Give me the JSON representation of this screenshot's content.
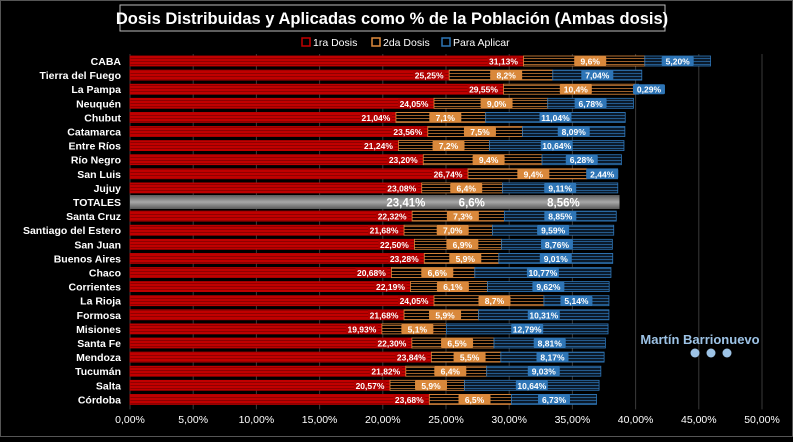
{
  "chart_data": {
    "type": "bar",
    "orientation": "horizontal",
    "stacked": true,
    "title": "Dosis Distribuidas y Aplicadas como % de la Población (Ambas dosis)",
    "xlim": [
      0,
      50
    ],
    "x_ticks": [
      "0,00%",
      "5,00%",
      "10,00%",
      "15,00%",
      "20,00%",
      "25,00%",
      "30,00%",
      "35,00%",
      "40,00%",
      "45,00%",
      "50,00%"
    ],
    "grid": true,
    "legend_position": "top",
    "colors": {
      "first": "#c00000",
      "second": "#e08a3c",
      "pending": "#2e75b6",
      "highlight": "#808080"
    },
    "categories": [
      "CABA",
      "Tierra del Fuego",
      "La Pampa",
      "Neuquén",
      "Chubut",
      "Catamarca",
      "Entre Ríos",
      "Río Negro",
      "San Luis",
      "Jujuy",
      "TOTALES",
      "Santa Cruz",
      "Santiago del Estero",
      "San Juan",
      "Buenos Aires",
      "Chaco",
      "Corrientes",
      "La Rioja",
      "Formosa",
      "Misiones",
      "Santa Fe",
      "Mendoza",
      "Tucumán",
      "Salta",
      "Córdoba"
    ],
    "highlight_category": "TOTALES",
    "series": [
      {
        "name": "1ra Dosis",
        "values": [
          31.13,
          25.25,
          29.55,
          24.05,
          21.04,
          23.56,
          21.24,
          23.2,
          26.74,
          23.08,
          23.41,
          22.32,
          21.68,
          22.5,
          23.28,
          20.68,
          22.19,
          24.05,
          21.68,
          19.93,
          22.3,
          23.84,
          21.82,
          20.57,
          23.68
        ],
        "labels": [
          "31,13%",
          "25,25%",
          "29,55%",
          "24,05%",
          "21,04%",
          "23,56%",
          "21,24%",
          "23,20%",
          "26,74%",
          "23,08%",
          "23,41%",
          "22,32%",
          "21,68%",
          "22,50%",
          "23,28%",
          "20,68%",
          "22,19%",
          "24,05%",
          "21,68%",
          "19,93%",
          "22,30%",
          "23,84%",
          "21,82%",
          "20,57%",
          "23,68%"
        ]
      },
      {
        "name": "2da Dosis",
        "values": [
          9.6,
          8.2,
          10.4,
          9.0,
          7.1,
          7.5,
          7.2,
          9.4,
          9.4,
          6.4,
          6.6,
          7.3,
          7.0,
          6.9,
          5.9,
          6.6,
          6.1,
          8.7,
          5.9,
          5.1,
          6.5,
          5.5,
          6.4,
          5.9,
          6.5
        ],
        "labels": [
          "9,6%",
          "8,2%",
          "10,4%",
          "9,0%",
          "7,1%",
          "7,5%",
          "7,2%",
          "9,4%",
          "9,4%",
          "6,4%",
          "6,6%",
          "7,3%",
          "7,0%",
          "6,9%",
          "5,9%",
          "6,6%",
          "6,1%",
          "8,7%",
          "5,9%",
          "5,1%",
          "6,5%",
          "5,5%",
          "6,4%",
          "5,9%",
          "6,5%"
        ]
      },
      {
        "name": "Para Aplicar",
        "values": [
          5.2,
          7.04,
          0.29,
          6.78,
          11.04,
          8.09,
          10.64,
          6.28,
          2.44,
          9.11,
          8.56,
          8.85,
          9.59,
          8.76,
          9.01,
          10.77,
          9.62,
          5.14,
          10.31,
          12.79,
          8.81,
          8.17,
          9.03,
          10.64,
          6.73
        ],
        "labels": [
          "5,20%",
          "7,04%",
          "0,29%",
          "6,78%",
          "11,04%",
          "8,09%",
          "10,64%",
          "6,28%",
          "2,44%",
          "9,11%",
          "8,56%",
          "8,85%",
          "9,59%",
          "8,76%",
          "9,01%",
          "10,77%",
          "9,62%",
          "5,14%",
          "10,31%",
          "12,79%",
          "8,81%",
          "8,17%",
          "9,03%",
          "10,64%",
          "6,73%"
        ]
      }
    ]
  },
  "watermark": {
    "name": "Martín Barrionuevo",
    "icons": [
      "facebook-icon",
      "twitter-icon",
      "youtube-icon"
    ]
  }
}
